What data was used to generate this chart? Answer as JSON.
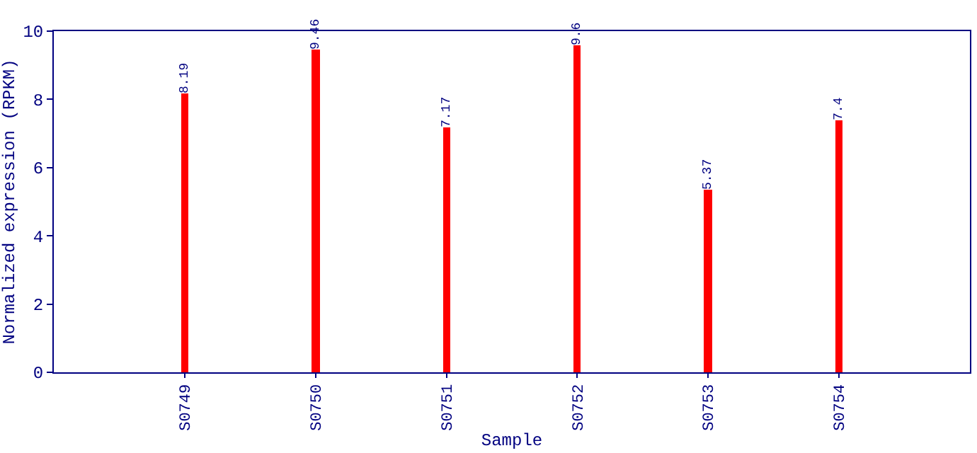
{
  "chart_data": {
    "type": "bar",
    "xlabel": "Sample",
    "ylabel": "Normalized expression (RPKM)",
    "categories": [
      "S0749",
      "S0750",
      "S0751",
      "S0752",
      "S0753",
      "S0754"
    ],
    "values": [
      8.19,
      9.46,
      7.17,
      9.6,
      5.37,
      7.4
    ],
    "color": "#ff0000",
    "ylim": [
      0,
      10
    ],
    "yticks": [
      0,
      2,
      4,
      6,
      8,
      10
    ],
    "data_labels": true
  }
}
